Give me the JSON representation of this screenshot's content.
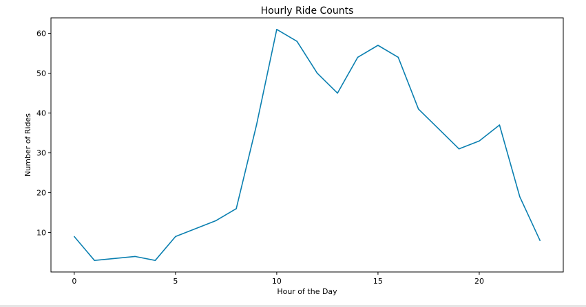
{
  "chart_data": {
    "type": "line",
    "title": "Hourly Ride Counts",
    "xlabel": "Hour of the Day",
    "ylabel": "Number of Rides",
    "xlim": [
      -1.15,
      24.15
    ],
    "ylim": [
      0.1,
      63.9
    ],
    "xticks": [
      0,
      5,
      10,
      15,
      20
    ],
    "yticks": [
      10,
      20,
      30,
      40,
      50,
      60
    ],
    "grid": false,
    "series": [
      {
        "color": "#0a7fb0",
        "x": [
          0,
          1,
          3,
          4,
          5,
          7,
          8,
          9,
          10,
          11,
          12,
          13,
          14,
          15,
          16,
          17,
          19,
          20,
          21,
          22,
          23
        ],
        "y": [
          9,
          3,
          4,
          3,
          9,
          13,
          16,
          37,
          61,
          58,
          50,
          45,
          54,
          57,
          54,
          41,
          31,
          33,
          37,
          19,
          8
        ]
      }
    ]
  }
}
